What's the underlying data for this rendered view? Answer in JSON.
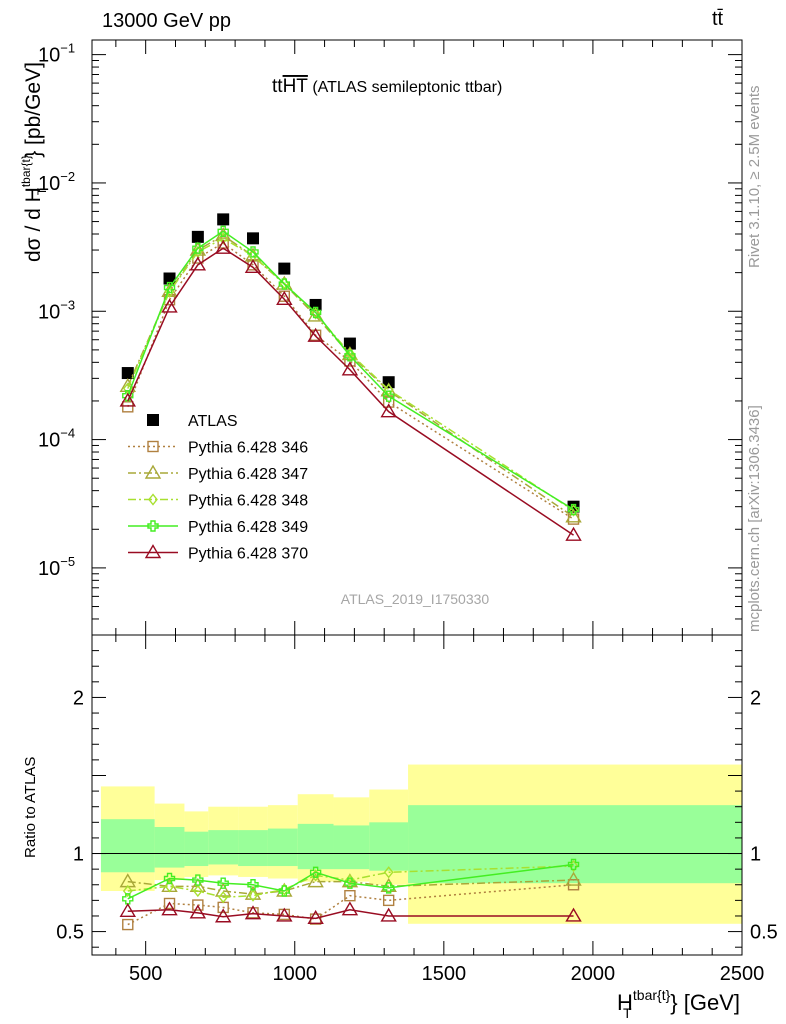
{
  "header": {
    "left_text": "13000 GeV pp",
    "right_text": "tt̄"
  },
  "side_labels": {
    "rivet": "Rivet 3.1.10, ≥ 2.5M events",
    "mcplots": "mcplots.cern.ch [arXiv:1306.3436]"
  },
  "analysis_tag": "ATLAS_2019_I1750330",
  "chart_data": [
    {
      "type": "scatter",
      "panel": "main",
      "title": "tt̄HT (ATLAS semileptonic ttbar)",
      "title_main": "tt",
      "title_over": "HT",
      "title_rest": " (ATLAS semileptonic ttbar)",
      "ylabel": "dσ / d H_T^{tbar{t}} [pb/GeV]",
      "ylabel_pre": "dσ / d H",
      "ylabel_sub": "T",
      "ylabel_sup": "tbar{t}",
      "ylabel_post": "} [pb/GeV]",
      "yscale": "log",
      "ylim": [
        3e-06,
        0.13
      ],
      "xlim": [
        320,
        2500
      ],
      "ytick_labels": [
        {
          "base": "10",
          "exp": "−5",
          "value": 1e-05
        },
        {
          "base": "10",
          "exp": "−4",
          "value": 0.0001
        },
        {
          "base": "10",
          "exp": "−3",
          "value": 0.001
        },
        {
          "base": "10",
          "exp": "−2",
          "value": 0.01
        },
        {
          "base": "10",
          "exp": "−1",
          "value": 0.1
        }
      ],
      "legend_position": "lower-left",
      "x": [
        440,
        580,
        675,
        760,
        860,
        965,
        1070,
        1185,
        1315,
        1935
      ],
      "series": [
        {
          "name": "ATLAS",
          "color": "#000000",
          "marker": "square-filled",
          "line": "none",
          "values": [
            0.00033,
            0.0018,
            0.0038,
            0.0052,
            0.0037,
            0.00215,
            0.00112,
            0.00056,
            0.00028,
            3e-05
          ]
        },
        {
          "name": "Pythia 6.428 346",
          "color": "#b08040",
          "marker": "square-open",
          "line": "dotted",
          "values": [
            0.00018,
            0.00123,
            0.0026,
            0.0034,
            0.0023,
            0.00131,
            0.00065,
            0.00041,
            0.000196,
            2.4e-05
          ]
        },
        {
          "name": "Pythia 6.428 347",
          "color": "#a8a838",
          "marker": "triangle-open",
          "line": "dashdot",
          "values": [
            0.00026,
            0.00143,
            0.003,
            0.0039,
            0.0027,
            0.00163,
            0.00092,
            0.00046,
            0.00024,
            2.5e-05
          ]
        },
        {
          "name": "Pythia 6.428 348",
          "color": "#a8e030",
          "marker": "diamond-open",
          "line": "dashdot",
          "values": [
            0.00025,
            0.00142,
            0.0029,
            0.0037,
            0.0027,
            0.00165,
            0.00096,
            0.00047,
            0.000245,
            2.8e-05
          ]
        },
        {
          "name": "Pythia 6.428 349",
          "color": "#44ee22",
          "marker": "cross-open",
          "line": "solid",
          "values": [
            0.00022,
            0.00153,
            0.0031,
            0.0042,
            0.0029,
            0.00163,
            0.00098,
            0.00045,
            0.000218,
            2.85e-05
          ]
        },
        {
          "name": "Pythia 6.428 370",
          "color": "#990c22",
          "marker": "triangle-open",
          "line": "solid",
          "values": [
            0.0002,
            0.00108,
            0.0023,
            0.0031,
            0.0022,
            0.00124,
            0.00064,
            0.00035,
            0.000165,
            1.8e-05
          ]
        }
      ]
    },
    {
      "type": "scatter",
      "panel": "ratio",
      "ylabel": "Ratio to ATLAS",
      "ylim": [
        0.35,
        2.4
      ],
      "xlim": [
        320,
        2500
      ],
      "yticks": [
        0.5,
        1,
        2
      ],
      "ytick_labels": [
        "0.5",
        "1",
        "2"
      ],
      "xticks": [
        500,
        1000,
        1500,
        2000,
        2500
      ],
      "xtick_labels": [
        "500",
        "1000",
        "1500",
        "2000",
        "2500"
      ],
      "xlabel": "H_T^{tbar{t}} [GeV]",
      "xlabel_pre": "H",
      "xlabel_sub": "T",
      "xlabel_sup": "tbar{t}",
      "xlabel_post": "} [GeV]",
      "bins": [
        {
          "lo": 350,
          "hi": 530,
          "band_outer": [
            0.76,
            1.43
          ],
          "band_inner": [
            0.88,
            1.22
          ]
        },
        {
          "lo": 530,
          "hi": 630,
          "band_outer": [
            0.83,
            1.32
          ],
          "band_inner": [
            0.91,
            1.17
          ]
        },
        {
          "lo": 630,
          "hi": 710,
          "band_outer": [
            0.85,
            1.27
          ],
          "band_inner": [
            0.92,
            1.14
          ]
        },
        {
          "lo": 710,
          "hi": 810,
          "band_outer": [
            0.86,
            1.3
          ],
          "band_inner": [
            0.93,
            1.15
          ]
        },
        {
          "lo": 810,
          "hi": 910,
          "band_outer": [
            0.85,
            1.3
          ],
          "band_inner": [
            0.92,
            1.15
          ]
        },
        {
          "lo": 910,
          "hi": 1010,
          "band_outer": [
            0.84,
            1.31
          ],
          "band_inner": [
            0.92,
            1.16
          ]
        },
        {
          "lo": 1010,
          "hi": 1130,
          "band_outer": [
            0.82,
            1.38
          ],
          "band_inner": [
            0.9,
            1.19
          ]
        },
        {
          "lo": 1130,
          "hi": 1250,
          "band_outer": [
            0.82,
            1.36
          ],
          "band_inner": [
            0.9,
            1.18
          ]
        },
        {
          "lo": 1250,
          "hi": 1380,
          "band_outer": [
            0.8,
            1.41
          ],
          "band_inner": [
            0.89,
            1.2
          ]
        },
        {
          "lo": 1380,
          "hi": 2500,
          "band_outer": [
            0.55,
            1.57
          ],
          "band_inner": [
            0.81,
            1.31
          ]
        }
      ],
      "x": [
        440,
        580,
        675,
        760,
        860,
        965,
        1070,
        1185,
        1315,
        1935
      ],
      "series": [
        {
          "name": "Pythia 6.428 346",
          "color": "#b08040",
          "marker": "square-open",
          "line": "dotted",
          "values": [
            0.545,
            0.68,
            0.67,
            0.655,
            0.62,
            0.61,
            0.58,
            0.73,
            0.7,
            0.8
          ]
        },
        {
          "name": "Pythia 6.428 347",
          "color": "#a8a838",
          "marker": "triangle-open",
          "line": "dashdot",
          "values": [
            0.82,
            0.79,
            0.79,
            0.76,
            0.74,
            0.76,
            0.82,
            0.82,
            0.79,
            0.83
          ]
        },
        {
          "name": "Pythia 6.428 348",
          "color": "#a8e030",
          "marker": "diamond-open",
          "line": "dashdot",
          "values": [
            0.76,
            0.79,
            0.76,
            0.72,
            0.73,
            0.77,
            0.86,
            0.83,
            0.88,
            0.92
          ]
        },
        {
          "name": "Pythia 6.428 349",
          "color": "#44ee22",
          "marker": "cross-open",
          "line": "solid",
          "values": [
            0.71,
            0.84,
            0.83,
            0.81,
            0.8,
            0.76,
            0.88,
            0.81,
            0.78,
            0.93
          ]
        },
        {
          "name": "Pythia 6.428 370",
          "color": "#990c22",
          "marker": "triangle-open",
          "line": "solid",
          "values": [
            0.63,
            0.64,
            0.62,
            0.595,
            0.615,
            0.6,
            0.585,
            0.64,
            0.6,
            0.6
          ]
        }
      ]
    }
  ],
  "colors": {
    "band_outer": "#ffff99",
    "band_inner": "#99ff99",
    "side_text": "#9a9a9a",
    "tag_text": "#a6a6a6"
  }
}
